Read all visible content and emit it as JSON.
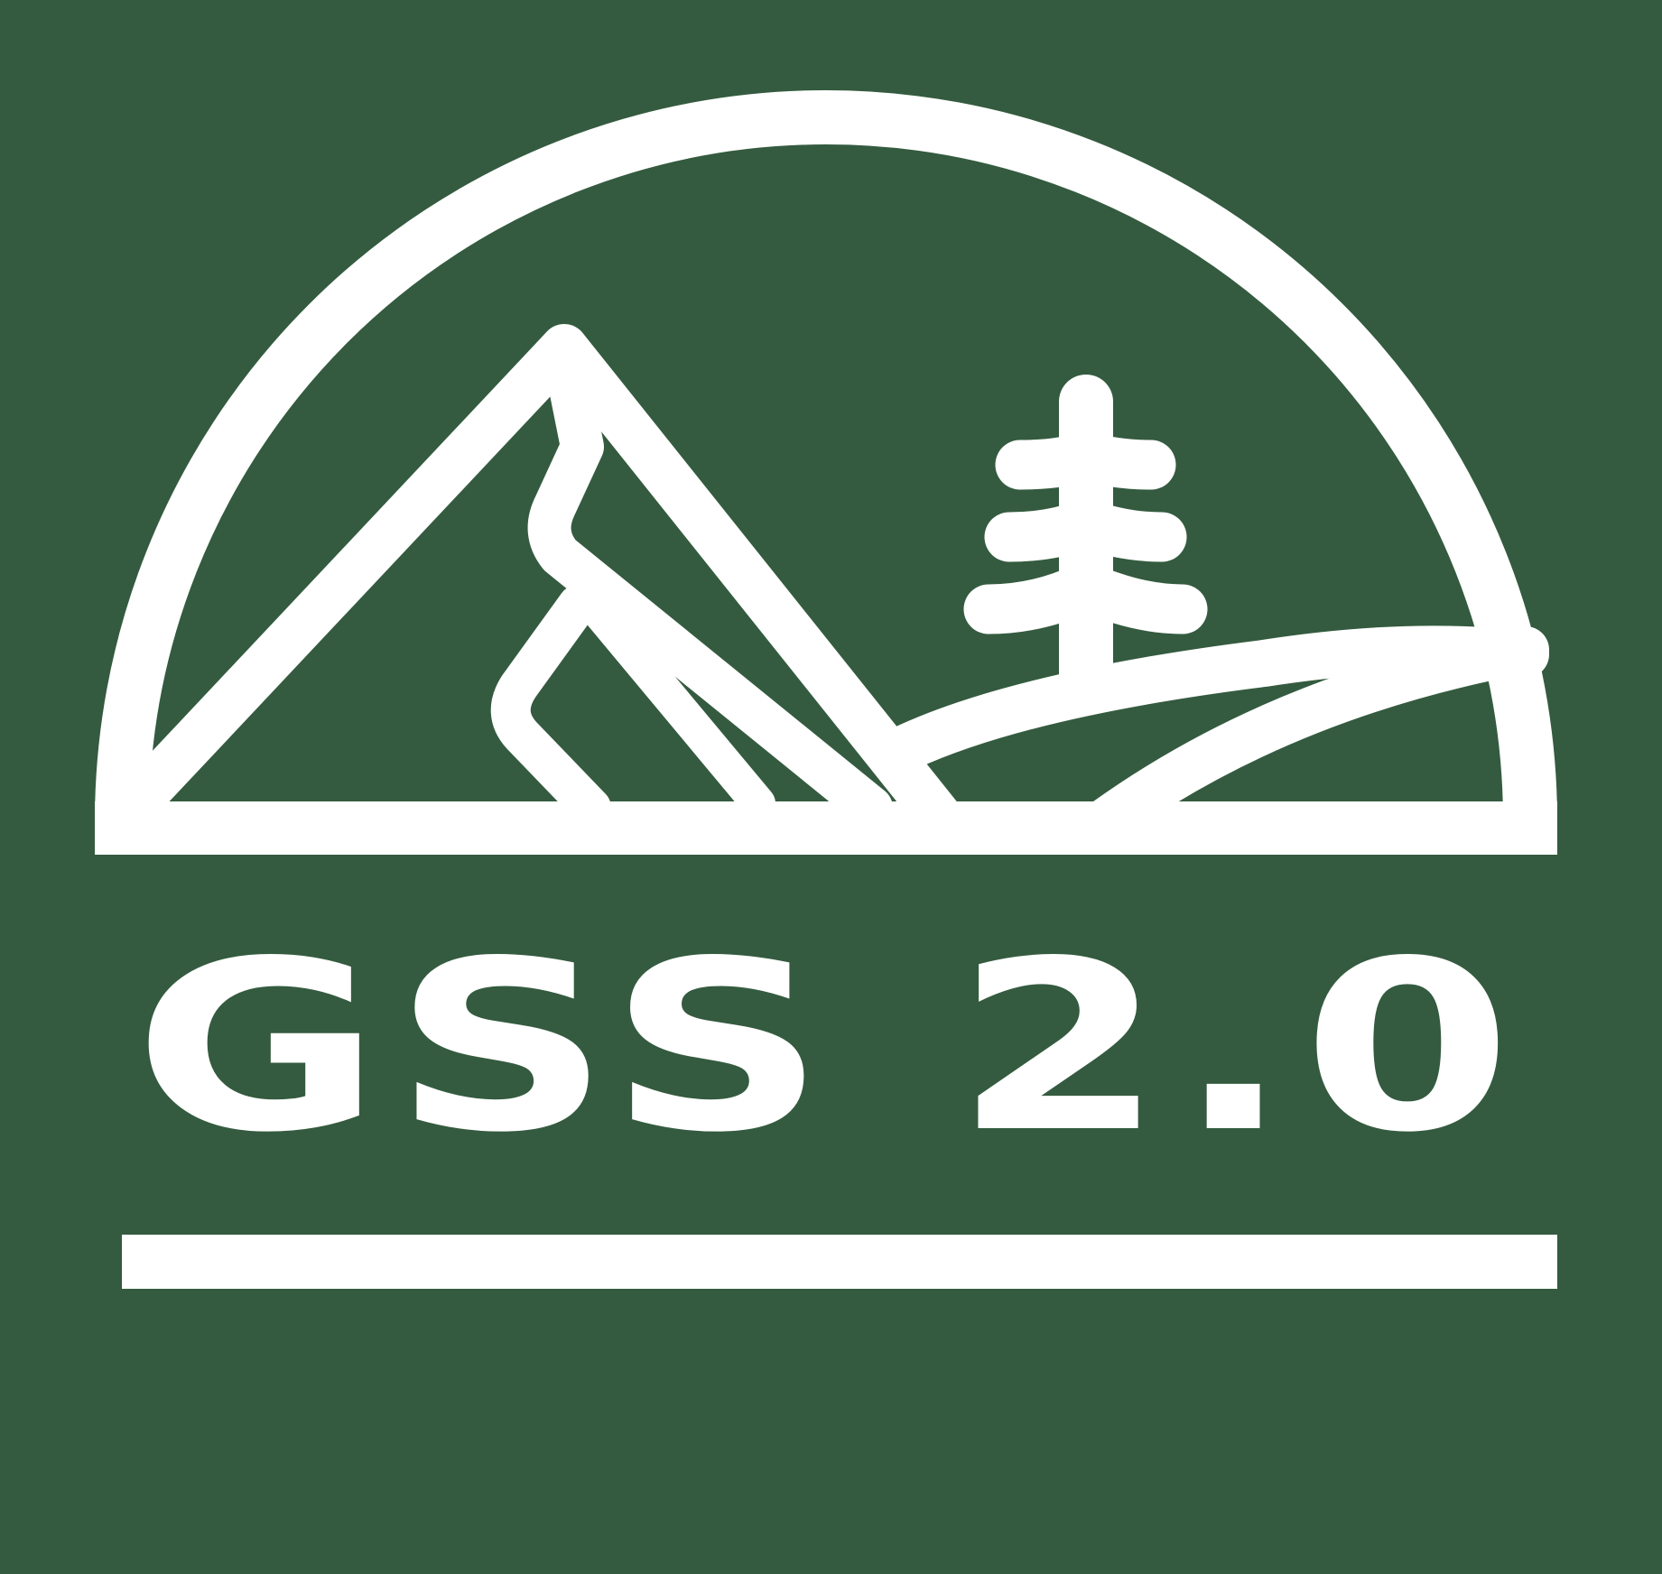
{
  "logo": {
    "wordmark": "GSS 2.0",
    "icon": "mountain-tree-sunrise-icon"
  },
  "colors": {
    "background": "#345B3F",
    "foreground": "#FFFFFF"
  }
}
